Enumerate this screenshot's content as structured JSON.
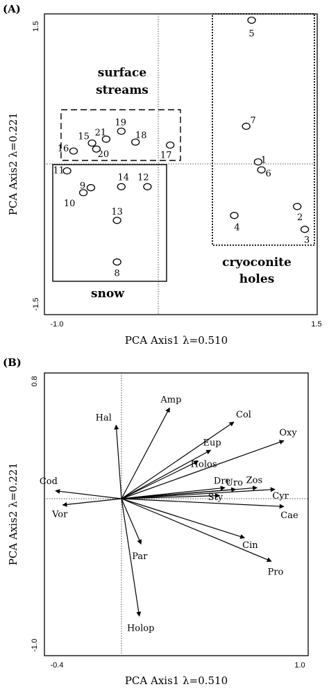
{
  "chart_data": [
    {
      "type": "scatter",
      "panel_label": "(A)",
      "xlabel": "PCA Axis1 λ=0.510",
      "ylabel": "PCA Axis2 λ=0.221",
      "xlim": [
        -1.0,
        1.5
      ],
      "ylim": [
        -1.5,
        1.5
      ],
      "x_ticks": [
        "-1.0",
        "1.5"
      ],
      "y_ticks": [
        "1.5",
        "-1.5"
      ],
      "points": [
        {
          "label": "1",
          "x": 0.92,
          "y": 0.02
        },
        {
          "label": "2",
          "x": 1.28,
          "y": -0.43
        },
        {
          "label": "3",
          "x": 1.35,
          "y": -0.66
        },
        {
          "label": "4",
          "x": 0.7,
          "y": -0.52
        },
        {
          "label": "5",
          "x": 0.86,
          "y": 1.45
        },
        {
          "label": "6",
          "x": 0.95,
          "y": -0.06
        },
        {
          "label": "7",
          "x": 0.81,
          "y": 0.38
        },
        {
          "label": "8",
          "x": -0.38,
          "y": -0.99
        },
        {
          "label": "9",
          "x": -0.62,
          "y": -0.24
        },
        {
          "label": "10",
          "x": -0.69,
          "y": -0.29
        },
        {
          "label": "11",
          "x": -0.84,
          "y": -0.07
        },
        {
          "label": "12",
          "x": -0.1,
          "y": -0.23
        },
        {
          "label": "13",
          "x": -0.38,
          "y": -0.57
        },
        {
          "label": "14",
          "x": -0.34,
          "y": -0.23
        },
        {
          "label": "15",
          "x": -0.61,
          "y": 0.21
        },
        {
          "label": "16",
          "x": -0.78,
          "y": 0.13
        },
        {
          "label": "17",
          "x": 0.11,
          "y": 0.19
        },
        {
          "label": "18",
          "x": -0.21,
          "y": 0.22
        },
        {
          "label": "19",
          "x": -0.34,
          "y": 0.33
        },
        {
          "label": "20",
          "x": -0.57,
          "y": 0.15
        },
        {
          "label": "21",
          "x": -0.48,
          "y": 0.25
        }
      ],
      "groups": [
        {
          "name": "surface streams",
          "lines": [
            "surface",
            "streams"
          ],
          "border": "dashed"
        },
        {
          "name": "snow",
          "lines": [
            "snow"
          ],
          "border": "solid"
        },
        {
          "name": "cryoconite holes",
          "lines": [
            "cryoconite",
            "holes"
          ],
          "border": "dotted"
        }
      ]
    },
    {
      "type": "biplot",
      "panel_label": "(B)",
      "xlabel": "PCA Axis1 λ=0.510",
      "ylabel": "PCA Axis2 λ=0.221",
      "xlim": [
        -0.4,
        1.0
      ],
      "ylim": [
        -1.0,
        0.8
      ],
      "x_ticks": [
        "-0.4",
        "1.0"
      ],
      "y_ticks": [
        "0.8",
        "-1.0"
      ],
      "vectors": [
        {
          "label": "Amp",
          "x": 0.27,
          "y": 0.58
        },
        {
          "label": "Hal",
          "x": -0.03,
          "y": 0.47
        },
        {
          "label": "Col",
          "x": 0.63,
          "y": 0.49
        },
        {
          "label": "Oxy",
          "x": 0.91,
          "y": 0.37
        },
        {
          "label": "Eup",
          "x": 0.5,
          "y": 0.31
        },
        {
          "label": "Holos",
          "x": 0.43,
          "y": 0.24
        },
        {
          "label": "Dre",
          "x": 0.58,
          "y": 0.07
        },
        {
          "label": "Uro",
          "x": 0.64,
          "y": 0.06
        },
        {
          "label": "Zos",
          "x": 0.76,
          "y": 0.07
        },
        {
          "label": "Cyr",
          "x": 0.86,
          "y": 0.06
        },
        {
          "label": "Sty",
          "x": 0.55,
          "y": 0.02
        },
        {
          "label": "Cae",
          "x": 0.91,
          "y": -0.05
        },
        {
          "label": "Cin",
          "x": 0.69,
          "y": -0.25
        },
        {
          "label": "Pro",
          "x": 0.84,
          "y": -0.4
        },
        {
          "label": "Par",
          "x": 0.11,
          "y": -0.29
        },
        {
          "label": "Holop",
          "x": 0.1,
          "y": -0.75
        },
        {
          "label": "Cod",
          "x": -0.37,
          "y": 0.05
        },
        {
          "label": "Vor",
          "x": -0.33,
          "y": -0.04
        }
      ]
    }
  ]
}
